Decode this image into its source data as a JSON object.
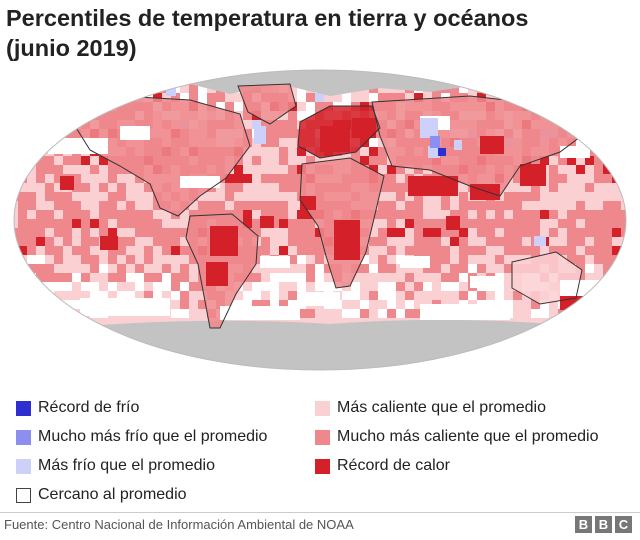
{
  "title_line1": "Percentiles de temperatura en tierra y océanos",
  "title_line2": "(junio 2019)",
  "colors": {
    "record_cold": "#2d2fd0",
    "much_colder": "#8d8ff0",
    "colder": "#cdd0f8",
    "near_average": "#ffffff",
    "warmer": "#fad0d2",
    "much_warmer": "#ee888c",
    "record_warm": "#d42129",
    "no_data": "#c3c3c3"
  },
  "legend": [
    {
      "key": "record_cold",
      "label": "Récord de frío"
    },
    {
      "key": "much_colder",
      "label": "Mucho más frío que el promedio"
    },
    {
      "key": "colder",
      "label": "Más frío que el promedio"
    },
    {
      "key": "near_average",
      "label": "Cercano al promedio"
    },
    {
      "key": "warmer",
      "label": "Más caliente que el promedio"
    },
    {
      "key": "much_warmer",
      "label": "Mucho más caliente que el promedio"
    },
    {
      "key": "record_warm",
      "label": "Récord de calor"
    }
  ],
  "source": "Fuente: Centro Nacional de Información Ambiental de NOAA",
  "brand": [
    "B",
    "B",
    "C"
  ]
}
